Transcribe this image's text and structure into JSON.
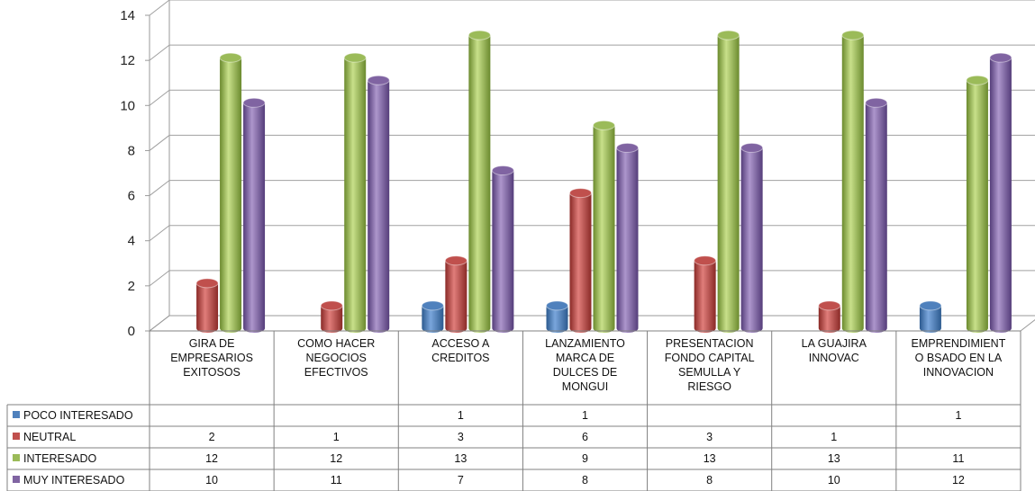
{
  "chart_data": {
    "type": "bar",
    "categories": [
      [
        "GIRA DE",
        "EMPRESARIOS",
        "EXITOSOS"
      ],
      [
        "COMO HACER",
        "NEGOCIOS",
        "EFECTIVOS"
      ],
      [
        "ACCESO A",
        "CREDITOS"
      ],
      [
        "LANZAMIENTO",
        "MARCA DE",
        "DULCES DE",
        "MONGUI"
      ],
      [
        "PRESENTACION",
        "FONDO CAPITAL",
        "SEMULLA Y",
        "RIESGO"
      ],
      [
        "LA GUAJIRA",
        "INNOVAC"
      ],
      [
        "EMPRENDIMIENT",
        "O BSADO EN LA",
        "INNOVACION"
      ]
    ],
    "series": [
      {
        "name": "POCO INTERESADO",
        "color": "#4F81BD",
        "values": [
          null,
          null,
          1,
          1,
          null,
          null,
          1
        ]
      },
      {
        "name": "NEUTRAL",
        "color": "#C0504D",
        "values": [
          2,
          1,
          3,
          6,
          3,
          1,
          null
        ]
      },
      {
        "name": "INTERESADO",
        "color": "#9BBB59",
        "values": [
          12,
          12,
          13,
          9,
          13,
          13,
          11
        ]
      },
      {
        "name": "MUY INTERESADO",
        "color": "#8064A2",
        "values": [
          10,
          11,
          7,
          8,
          8,
          10,
          12
        ]
      }
    ],
    "ylim": [
      0,
      14
    ],
    "yticks": [
      0,
      2,
      4,
      6,
      8,
      10,
      12,
      14
    ],
    "grid": true,
    "legend": "data-table"
  }
}
